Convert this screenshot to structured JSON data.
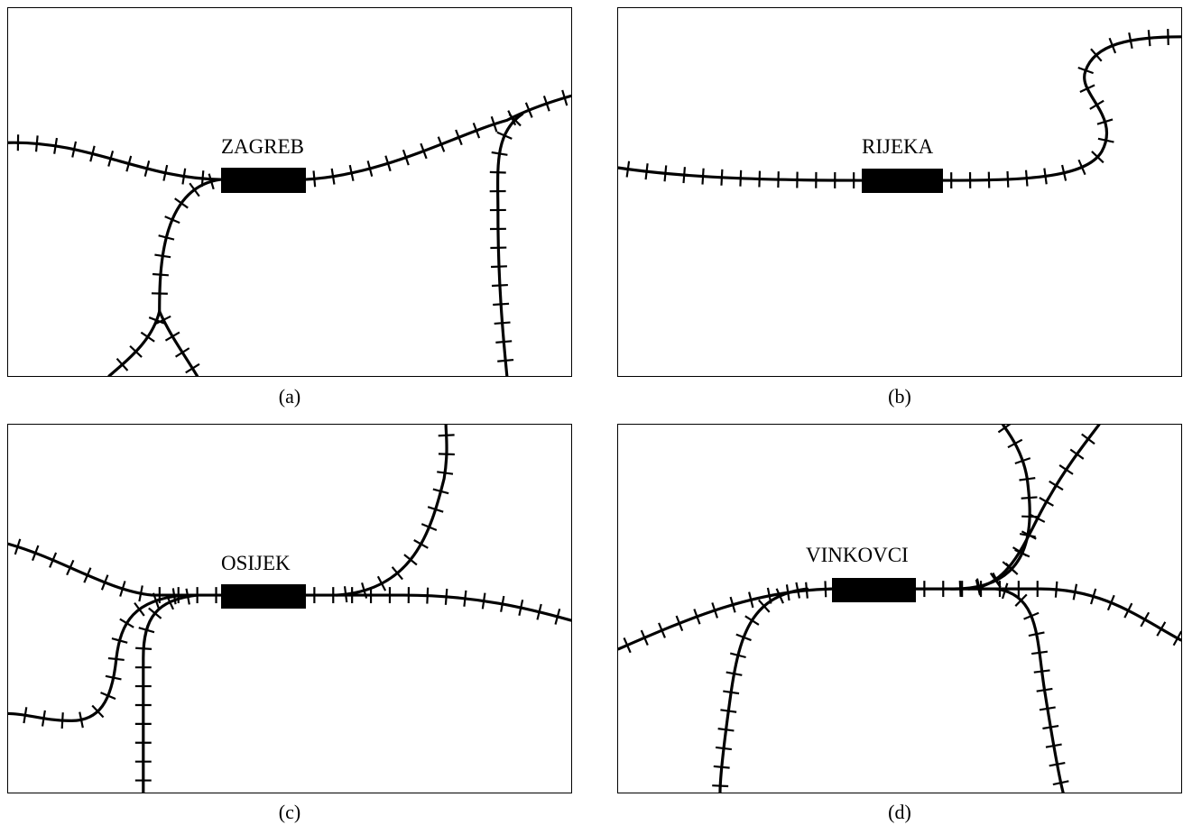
{
  "panels": [
    {
      "id": "a",
      "station": "ZAGREB",
      "caption": "(a)"
    },
    {
      "id": "b",
      "station": "RIJEKA",
      "caption": "(b)"
    },
    {
      "id": "c",
      "station": "OSIJEK",
      "caption": "(c)"
    },
    {
      "id": "d",
      "station": "VINKOVCI",
      "caption": "(d)"
    }
  ]
}
